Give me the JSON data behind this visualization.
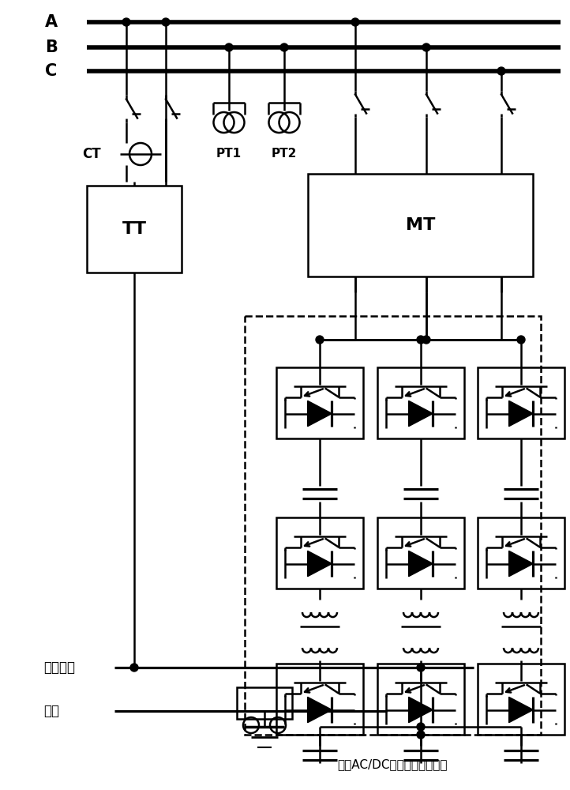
{
  "bg_color": "#ffffff",
  "line_color": "#000000",
  "bus_linewidth": 4.0,
  "wire_linewidth": 1.8,
  "label_A": "A",
  "label_B": "B",
  "label_C": "C",
  "label_TT": "TT",
  "label_MT": "MT",
  "label_CT": "CT",
  "label_PT1": "PT1",
  "label_PT2": "PT2",
  "bottom_label1": "牵引母线",
  "bottom_label2": "钔轨",
  "dashed_box_label": "三相AC/DC型电力电子变压器"
}
